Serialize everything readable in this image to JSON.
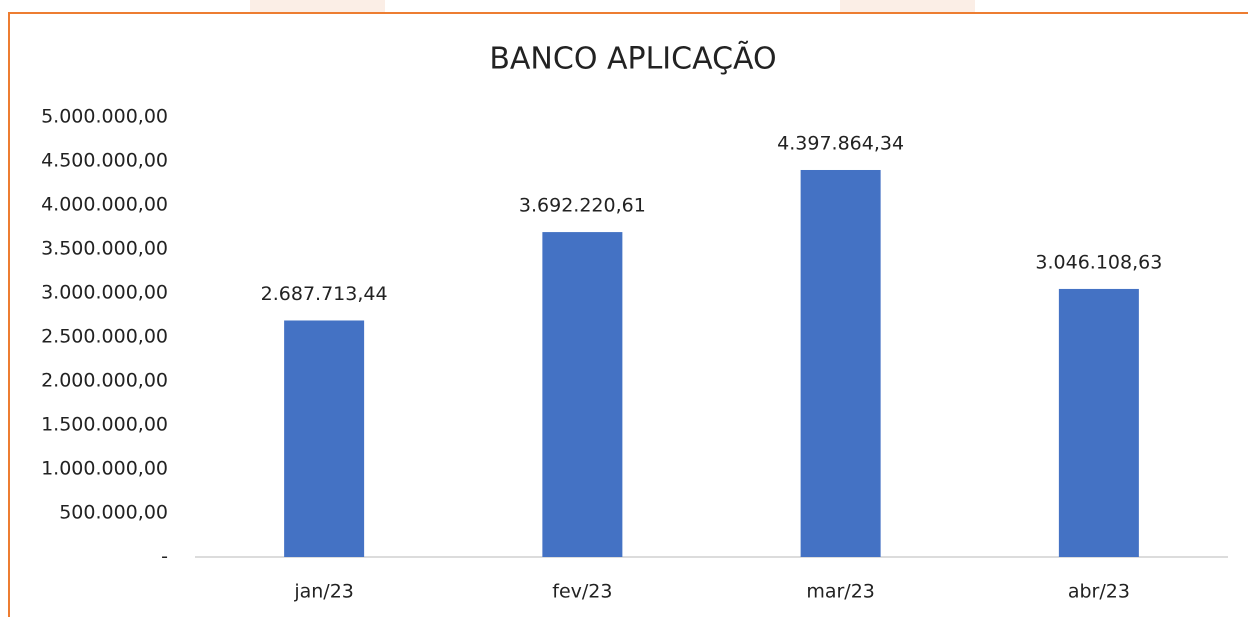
{
  "chart_data": {
    "type": "bar",
    "title": "BANCO APLICAÇÃO",
    "categories": [
      "jan/23",
      "fev/23",
      "mar/23",
      "abr/23"
    ],
    "values": [
      2687713.44,
      3692220.61,
      4397864.34,
      3046108.63
    ],
    "value_labels": [
      "2.687.713,44",
      "3.692.220,61",
      "4.397.864,34",
      "3.046.108,63"
    ],
    "color": "#4472c4",
    "ylim": [
      0,
      5000000
    ],
    "yticks": [
      {
        "value": 0,
        "label": "-"
      },
      {
        "value": 500000,
        "label": "500.000,00"
      },
      {
        "value": 1000000,
        "label": "1.000.000,00"
      },
      {
        "value": 1500000,
        "label": "1.500.000,00"
      },
      {
        "value": 2000000,
        "label": "2.000.000,00"
      },
      {
        "value": 2500000,
        "label": "2.500.000,00"
      },
      {
        "value": 3000000,
        "label": "3.000.000,00"
      },
      {
        "value": 3500000,
        "label": "3.500.000,00"
      },
      {
        "value": 4000000,
        "label": "4.000.000,00"
      },
      {
        "value": 4500000,
        "label": "4.500.000,00"
      },
      {
        "value": 5000000,
        "label": "5.000.000,00"
      }
    ],
    "grid": false
  }
}
